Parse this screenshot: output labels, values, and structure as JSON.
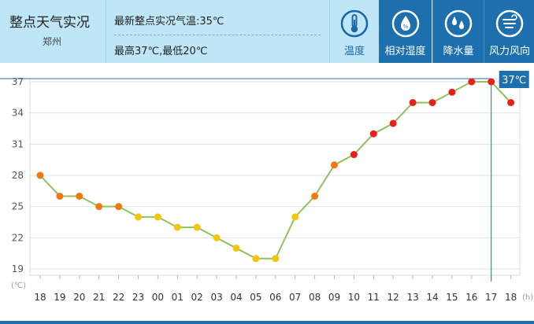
{
  "header": {
    "title": "整点天气实况",
    "city": "郑州",
    "latest_temp": "最新整点实况气温:35℃",
    "high_low": "最高37℃,最低20℃"
  },
  "tabs": [
    {
      "label": "温度",
      "icon": "thermometer-icon",
      "active": true
    },
    {
      "label": "相对湿度",
      "icon": "water-drop-icon",
      "active": false
    },
    {
      "label": "降水量",
      "icon": "rain-drops-icon",
      "active": false
    },
    {
      "label": "风力风向",
      "icon": "wind-icon",
      "active": false
    }
  ],
  "colors": {
    "header_bg": "#bfe6f7",
    "active_tab": "#1e6fae",
    "line": "#8fc25a",
    "point_red": "#e8201a",
    "point_orange": "#f07a12",
    "point_yellow": "#f4c412"
  },
  "chart_data": {
    "type": "line",
    "unit_label": "(℃)",
    "x_unit_label": "(h)",
    "categories": [
      "18",
      "19",
      "20",
      "21",
      "22",
      "23",
      "00",
      "01",
      "02",
      "03",
      "04",
      "05",
      "06",
      "07",
      "08",
      "09",
      "10",
      "11",
      "12",
      "13",
      "14",
      "15",
      "16",
      "17",
      "18"
    ],
    "values": [
      28,
      26,
      26,
      25,
      25,
      24,
      24,
      23,
      23,
      22,
      21,
      20,
      20,
      24,
      26,
      29,
      30,
      32,
      33,
      35,
      35,
      36,
      37,
      37,
      35
    ],
    "yticks": [
      19,
      22,
      25,
      28,
      31,
      34,
      37
    ],
    "ylim": [
      19,
      37.3
    ],
    "grid": true,
    "highlight": {
      "index": 23,
      "label": "37℃"
    }
  }
}
